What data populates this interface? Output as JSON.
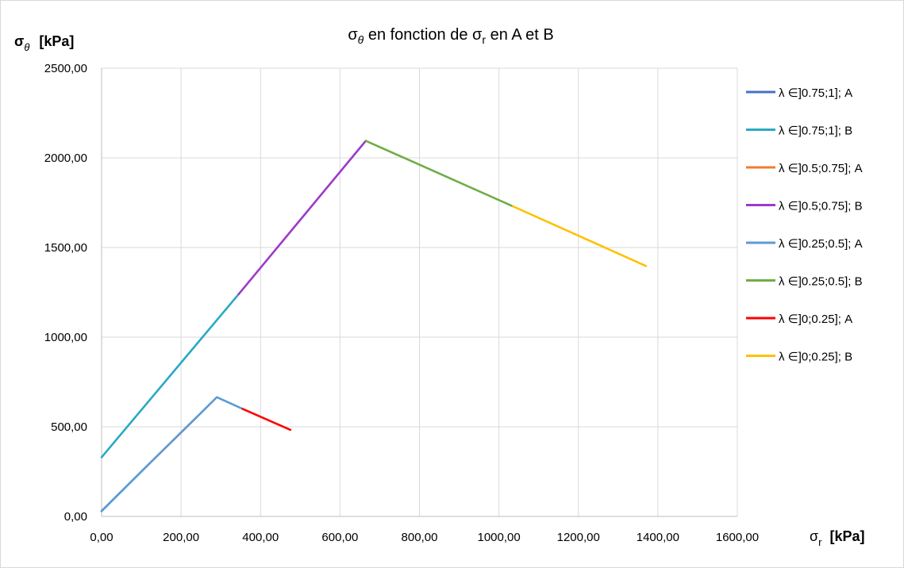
{
  "chart_data": {
    "type": "line",
    "title": {
      "sigma": "σ",
      "theta": "θ",
      "middle": " en fonction de σ",
      "r": "r",
      "end": " en A et B"
    },
    "ylabel": {
      "sigma": "σ",
      "sub": "θ",
      "unit": "[kPa]"
    },
    "xlabel": {
      "sigma": "σ",
      "sub": "r",
      "unit": "[kPa]"
    },
    "xlim": [
      0,
      1600
    ],
    "ylim": [
      0,
      2500
    ],
    "x_ticks": [
      "0,00",
      "200,00",
      "400,00",
      "600,00",
      "800,00",
      "1000,00",
      "1200,00",
      "1400,00",
      "1600,00"
    ],
    "y_ticks": [
      "0,00",
      "500,00",
      "1000,00",
      "1500,00",
      "2000,00",
      "2500,00"
    ],
    "grid": true,
    "legend_position": "right",
    "series": [
      {
        "name": "λ ∈]0.75;1]; A",
        "color": "#4472C4",
        "points": [
          [
            0,
            30
          ],
          [
            118,
            290
          ]
        ]
      },
      {
        "name": "λ ∈]0.75;1]; B",
        "color": "#2AA9C4",
        "points": [
          [
            0,
            330
          ],
          [
            345,
            1240
          ]
        ]
      },
      {
        "name": "λ ∈]0.5;0.75]; A",
        "color": "#ED7D31",
        "points": [
          [
            118,
            290
          ],
          [
            240,
            555
          ]
        ]
      },
      {
        "name": "λ ∈]0.5;0.75]; B",
        "color": "#9E3AC8",
        "points": [
          [
            345,
            1240
          ],
          [
            665,
            2095
          ]
        ]
      },
      {
        "name": "λ ∈]0.25;0.5]; A",
        "color": "#5B9BD5",
        "points": [
          [
            0,
            30
          ],
          [
            118,
            290
          ],
          [
            240,
            555
          ],
          [
            290,
            665
          ],
          [
            355,
            600
          ]
        ]
      },
      {
        "name": "λ ∈]0.25;0.5]; B",
        "color": "#70AD47",
        "points": [
          [
            665,
            2095
          ],
          [
            1035,
            1730
          ]
        ]
      },
      {
        "name": "λ ∈]0;0.25]; A",
        "color": "#FF0000",
        "points": [
          [
            355,
            600
          ],
          [
            475,
            483
          ]
        ]
      },
      {
        "name": "λ ∈]0;0.25]; B",
        "color": "#FFC000",
        "points": [
          [
            1035,
            1730
          ],
          [
            1370,
            1397
          ]
        ]
      }
    ]
  }
}
